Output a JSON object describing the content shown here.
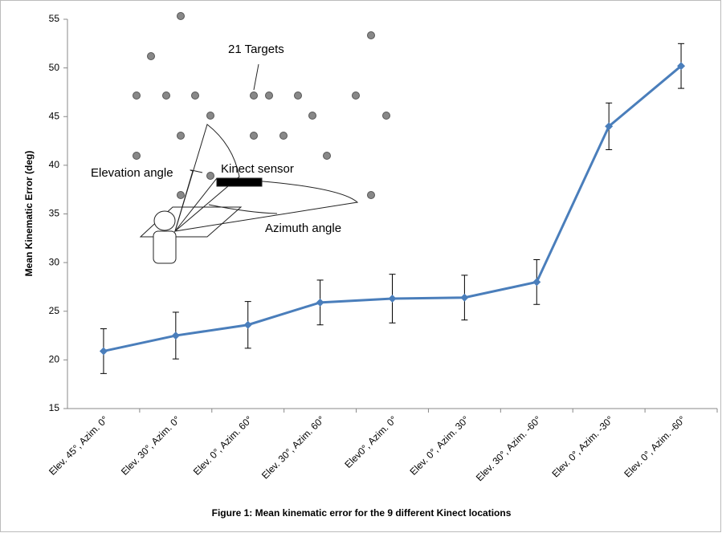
{
  "chart_data": {
    "type": "line",
    "y_label": "Mean Kinematic Error (deg)",
    "caption": "Figure 1: Mean kinematic error for the 9 different Kinect locations",
    "annotations": [
      "21 Targets",
      "Elevation angle",
      "Kinect sensor",
      "Azimuth angle"
    ],
    "categories": [
      "Elev. 45°, Azim. 0°",
      "Elev. 30°, Azim. 0°",
      "Elev. 0°, Azim. 60°",
      "Elev. 30°, Azim. 60°",
      "Elev0°, Azim. 0°",
      "Elev. 0°, Azim. 30°",
      "Elev. 30°, Azim. -60°",
      "Elev. 0°, Azim. -30°",
      "Elev. 0°, Azim. -60°"
    ],
    "series": [
      {
        "color": "#4a7ebb",
        "values": [
          20.9,
          22.5,
          23.6,
          25.9,
          26.3,
          26.4,
          28.0,
          44.0,
          50.2
        ],
        "errors": [
          2.3,
          2.4,
          2.4,
          2.3,
          2.5,
          2.3,
          2.3,
          2.4,
          2.3
        ]
      }
    ],
    "ylim": [
      15,
      55
    ],
    "yticks": [
      15,
      20,
      25,
      30,
      35,
      40,
      45,
      50,
      55
    ],
    "grid": false
  }
}
